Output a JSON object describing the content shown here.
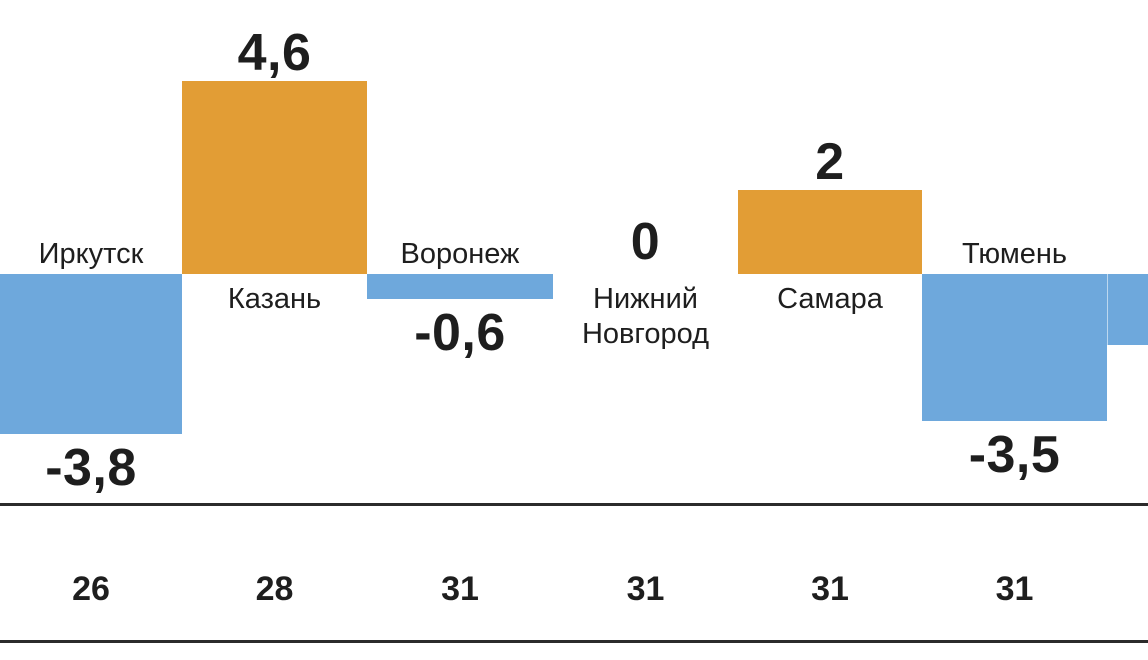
{
  "chart_data": {
    "type": "bar",
    "title": "",
    "legend": "none",
    "grid": "off",
    "categories": [
      "Иркутск",
      "Казань",
      "Воронеж",
      "Нижний Новгород",
      "Самара",
      "Тюмень"
    ],
    "values": [
      -3.8,
      4.6,
      -0.6,
      0,
      2,
      -3.5
    ],
    "cities": [
      {
        "slug": "irkutsk",
        "name_lines": [
          "Иркутск"
        ],
        "value": -3.8,
        "label": "-3,8",
        "partial": false
      },
      {
        "slug": "kazan",
        "name_lines": [
          "Казань"
        ],
        "value": 4.6,
        "label": "4,6",
        "partial": false
      },
      {
        "slug": "voronezh",
        "name_lines": [
          "Воронеж"
        ],
        "value": -0.6,
        "label": "-0,6",
        "partial": false
      },
      {
        "slug": "nizhny-novgorod",
        "name_lines": [
          "Нижний",
          "Новгород"
        ],
        "value": 0,
        "label": "0",
        "partial": false
      },
      {
        "slug": "samara",
        "name_lines": [
          "Самара"
        ],
        "value": 2,
        "label": "2",
        "partial": false
      },
      {
        "slug": "tyumen",
        "name_lines": [
          "Тюмень"
        ],
        "value": -3.5,
        "label": "-3,5",
        "partial": false
      },
      {
        "slug": "offscreen-right",
        "name_lines": [],
        "value": -1.7,
        "label": "",
        "partial": true
      }
    ],
    "footer_row": [
      "26",
      "28",
      "31",
      "31",
      "31",
      "31"
    ],
    "colors": {
      "positive_bar": "#E29D35",
      "negative_bar": "#6EA8DC",
      "text": "#1E1E1E",
      "divider": "#2B2B2B",
      "background": "#FFFFFF"
    }
  }
}
